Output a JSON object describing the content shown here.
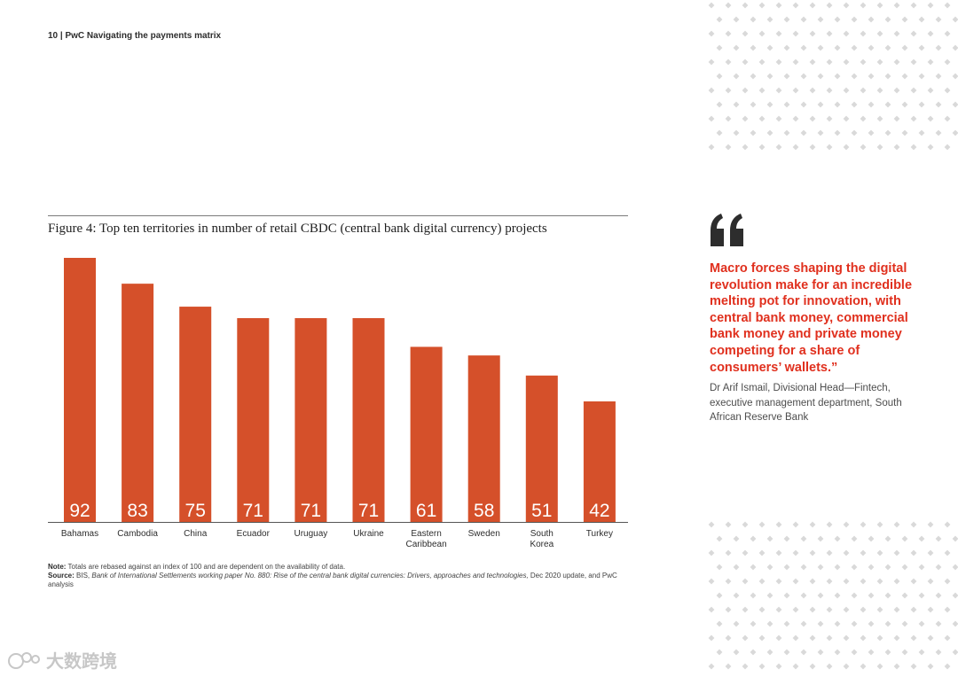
{
  "header": {
    "page_number": "10",
    "title": "PwC Navigating the payments matrix"
  },
  "figure": {
    "title": "Figure 4: Top ten territories in number of retail CBDC (central bank digital currency) projects",
    "note_label": "Note:",
    "note_text": "Totals are rebased against an index of 100 and are dependent on the availability of data.",
    "source_label": "Source:",
    "source_plain_1": "BIS,",
    "source_italic": "Bank of International Settlements working paper No. 880: Rise of the central bank digital currencies: Drivers, approaches and technologies,",
    "source_plain_2": "Dec 2020 update, and PwC analysis"
  },
  "chart_data": {
    "type": "bar",
    "categories": [
      "Bahamas",
      "Cambodia",
      "China",
      "Ecuador",
      "Uruguay",
      "Ukraine",
      "Eastern Caribbean",
      "Sweden",
      "South Korea",
      "Turkey"
    ],
    "values": [
      92,
      83,
      75,
      71,
      71,
      71,
      61,
      58,
      51,
      42
    ],
    "title": "Figure 4: Top ten territories in number of retail CBDC (central bank digital currency) projects",
    "xlabel": "",
    "ylabel": "",
    "ylim": [
      0,
      92
    ],
    "grid": false,
    "data_labels": "inside-bottom",
    "bar_color": "#d5502a"
  },
  "quote": {
    "text": "Macro forces shaping the digital revolution make for an incredible melting pot for innovation, with central bank money, commercial bank money and private money competing for a share of consumers’ wallets.”",
    "attribution": "Dr Arif Ismail, Divisional Head—Fintech, executive management department, South African Reserve Bank",
    "mark_icon": "quotation-mark-icon"
  },
  "watermark": {
    "text": "大数跨境",
    "icon": "watermark-logo-icon"
  },
  "colors": {
    "accent": "#e0301e",
    "bar": "#d5502a",
    "dots": "#d9d9d9",
    "quote_mark": "#2d2d2d"
  }
}
